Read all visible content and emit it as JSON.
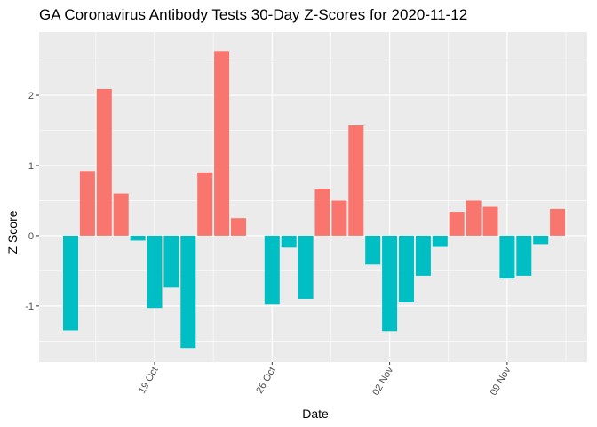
{
  "chart_data": {
    "type": "bar",
    "title": "GA Coronavirus Antibody Tests 30-Day Z-Scores for 2020-11-12",
    "xlabel": "Date",
    "ylabel": "Z Score",
    "ylim": [
      -1.8,
      2.9
    ],
    "yticks": [
      -1,
      0,
      1,
      2
    ],
    "grid": true,
    "legend": "none",
    "x_ticks": [
      {
        "label": "19 Oct",
        "date": "2020-10-19"
      },
      {
        "label": "26 Oct",
        "date": "2020-10-26"
      },
      {
        "label": "02 Nov",
        "date": "2020-11-02"
      },
      {
        "label": "09 Nov",
        "date": "2020-11-09"
      }
    ],
    "colors": {
      "positive": "#F8766D",
      "negative": "#00BFC4"
    },
    "points": [
      {
        "date": "2020-10-14",
        "value": -1.35
      },
      {
        "date": "2020-10-15",
        "value": 0.92
      },
      {
        "date": "2020-10-16",
        "value": 2.09
      },
      {
        "date": "2020-10-17",
        "value": 0.6
      },
      {
        "date": "2020-10-18",
        "value": -0.07
      },
      {
        "date": "2020-10-19",
        "value": -1.03
      },
      {
        "date": "2020-10-20",
        "value": -0.74
      },
      {
        "date": "2020-10-21",
        "value": -1.6
      },
      {
        "date": "2020-10-22",
        "value": 0.9
      },
      {
        "date": "2020-10-23",
        "value": 2.63
      },
      {
        "date": "2020-10-24",
        "value": 0.25
      },
      {
        "date": "2020-10-26",
        "value": -0.98
      },
      {
        "date": "2020-10-27",
        "value": -0.17
      },
      {
        "date": "2020-10-28",
        "value": -0.9
      },
      {
        "date": "2020-10-29",
        "value": 0.67
      },
      {
        "date": "2020-10-30",
        "value": 0.5
      },
      {
        "date": "2020-10-31",
        "value": 1.57
      },
      {
        "date": "2020-11-01",
        "value": -0.41
      },
      {
        "date": "2020-11-02",
        "value": -1.36
      },
      {
        "date": "2020-11-03",
        "value": -0.95
      },
      {
        "date": "2020-11-04",
        "value": -0.57
      },
      {
        "date": "2020-11-05",
        "value": -0.16
      },
      {
        "date": "2020-11-06",
        "value": 0.34
      },
      {
        "date": "2020-11-07",
        "value": 0.5
      },
      {
        "date": "2020-11-08",
        "value": 0.41
      },
      {
        "date": "2020-11-09",
        "value": -0.61
      },
      {
        "date": "2020-11-10",
        "value": -0.57
      },
      {
        "date": "2020-11-11",
        "value": -0.12
      },
      {
        "date": "2020-11-12",
        "value": 0.38
      }
    ]
  }
}
